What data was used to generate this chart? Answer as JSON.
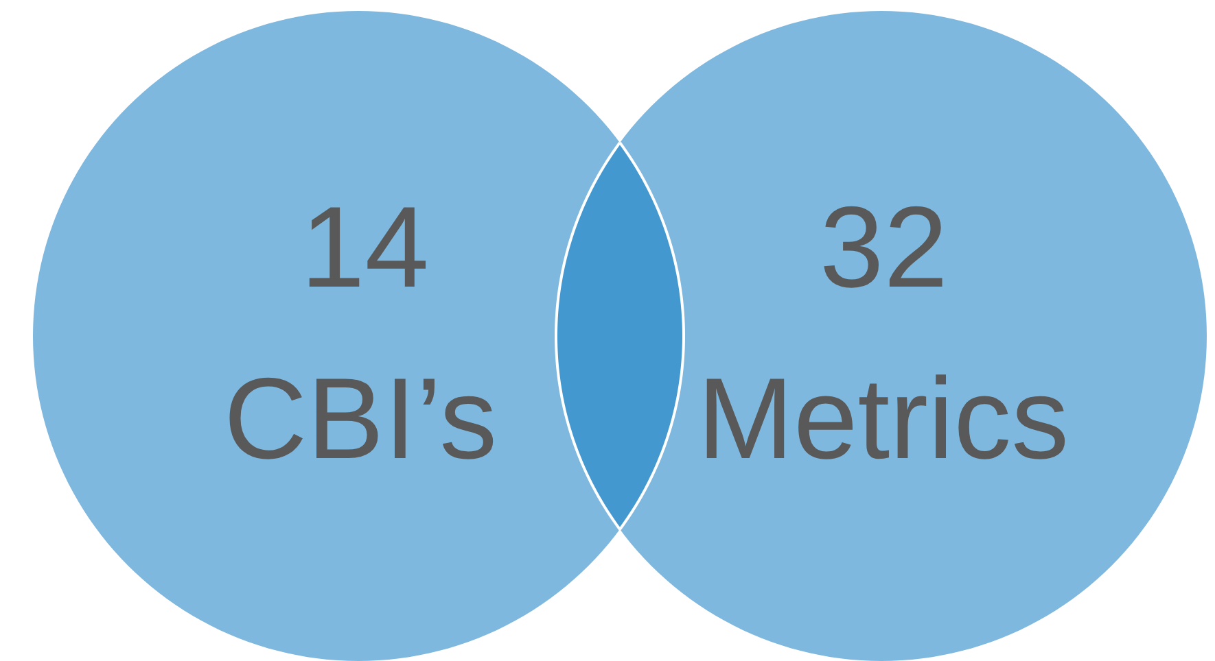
{
  "chart_data": {
    "type": "other",
    "categories": [
      "CBI’s",
      "Metrics",
      null
    ],
    "values": [
      14,
      32,
      null
    ],
    "data_labels": true,
    "colors": [
      "#7fb8de",
      "#7fb8de",
      "#4398cf"
    ]
  }
}
